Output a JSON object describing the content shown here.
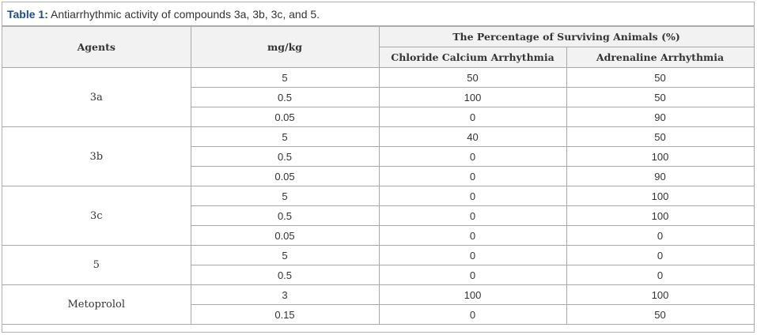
{
  "caption": {
    "label": "Table 1:",
    "text": " Antiarrhythmic activity of compounds 3a, 3b, 3c, and 5."
  },
  "headers": {
    "agents": "Agents",
    "dose": "mg/kg",
    "group": "The Percentage of Surviving Animals (%)",
    "col_chloride": "Chloride Calcium Arrhythmia",
    "col_adrenaline": "Adrenaline Arrhythmia"
  },
  "groups": [
    {
      "agent": "3a",
      "rows": [
        {
          "dose": "5",
          "chloride": "50",
          "adrenaline": "50"
        },
        {
          "dose": "0.5",
          "chloride": "100",
          "adrenaline": "50"
        },
        {
          "dose": "0.05",
          "chloride": "0",
          "adrenaline": "90"
        }
      ]
    },
    {
      "agent": "3b",
      "rows": [
        {
          "dose": "5",
          "chloride": "40",
          "adrenaline": "50"
        },
        {
          "dose": "0.5",
          "chloride": "0",
          "adrenaline": "100"
        },
        {
          "dose": "0.05",
          "chloride": "0",
          "adrenaline": "90"
        }
      ]
    },
    {
      "agent": "3c",
      "rows": [
        {
          "dose": "5",
          "chloride": "0",
          "adrenaline": "100"
        },
        {
          "dose": "0.5",
          "chloride": "0",
          "adrenaline": "100"
        },
        {
          "dose": "0.05",
          "chloride": "0",
          "adrenaline": "0"
        }
      ]
    },
    {
      "agent": "5",
      "rows": [
        {
          "dose": "5",
          "chloride": "0",
          "adrenaline": "0"
        },
        {
          "dose": "0.5",
          "chloride": "0",
          "adrenaline": "0"
        }
      ]
    },
    {
      "agent": "Metoprolol",
      "rows": [
        {
          "dose": "3",
          "chloride": "100",
          "adrenaline": "100"
        },
        {
          "dose": "0.15",
          "chloride": "0",
          "adrenaline": "50"
        }
      ]
    }
  ],
  "colors": {
    "caption_label": "#1a4e8c",
    "header_bg": "#f2f2f2",
    "border": "#a8a8a8"
  }
}
